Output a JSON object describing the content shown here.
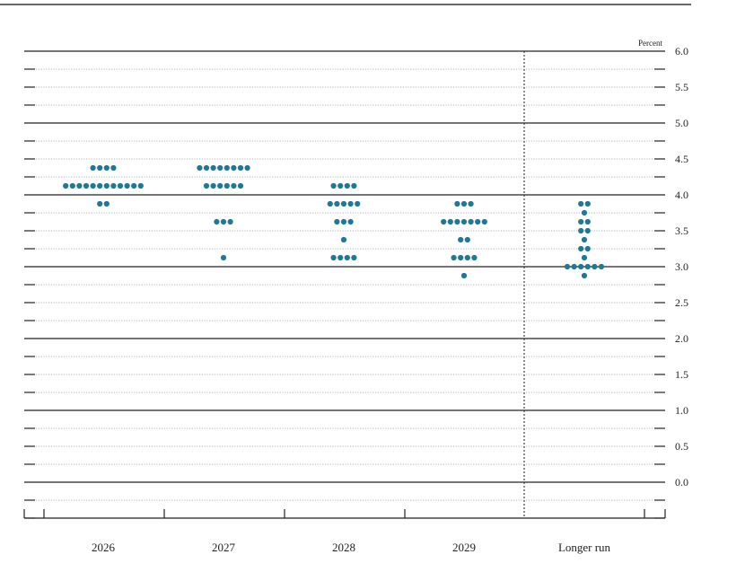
{
  "chart_data": {
    "type": "scatter",
    "unit_label": "Percent",
    "ylim": [
      -0.5,
      6.0
    ],
    "yticks": [
      "6.0",
      "5.5",
      "5.0",
      "4.5",
      "4.0",
      "3.5",
      "3.0",
      "2.5",
      "2.0",
      "1.5",
      "1.0",
      "0.5",
      "0.0"
    ],
    "categories": [
      "2026",
      "2027",
      "2028",
      "2029",
      "Longer run"
    ],
    "points": [
      {
        "category": "2026",
        "dots": [
          {
            "y": 4.375,
            "count": 4
          },
          {
            "y": 4.125,
            "count": 12
          },
          {
            "y": 3.875,
            "count": 2
          }
        ]
      },
      {
        "category": "2027",
        "dots": [
          {
            "y": 4.375,
            "count": 8
          },
          {
            "y": 4.125,
            "count": 6
          },
          {
            "y": 3.625,
            "count": 3
          },
          {
            "y": 3.125,
            "count": 1
          }
        ]
      },
      {
        "category": "2028",
        "dots": [
          {
            "y": 4.125,
            "count": 4
          },
          {
            "y": 3.875,
            "count": 5
          },
          {
            "y": 3.625,
            "count": 3
          },
          {
            "y": 3.375,
            "count": 1
          },
          {
            "y": 3.125,
            "count": 4
          }
        ]
      },
      {
        "category": "2029",
        "dots": [
          {
            "y": 3.875,
            "count": 3
          },
          {
            "y": 3.625,
            "count": 7
          },
          {
            "y": 3.375,
            "count": 2
          },
          {
            "y": 3.125,
            "count": 4
          },
          {
            "y": 2.875,
            "count": 1
          }
        ]
      },
      {
        "category": "Longer run",
        "dots": [
          {
            "y": 3.875,
            "count": 2
          },
          {
            "y": 3.75,
            "count": 1
          },
          {
            "y": 3.625,
            "count": 2
          },
          {
            "y": 3.5,
            "count": 2
          },
          {
            "y": 3.375,
            "count": 1
          },
          {
            "y": 3.25,
            "count": 2
          },
          {
            "y": 3.125,
            "count": 1
          },
          {
            "y": 3.0,
            "count": 6
          },
          {
            "y": 2.875,
            "count": 1
          }
        ]
      }
    ],
    "dot_color": "#1f7896",
    "grid": true,
    "separator_before": "Longer run"
  }
}
